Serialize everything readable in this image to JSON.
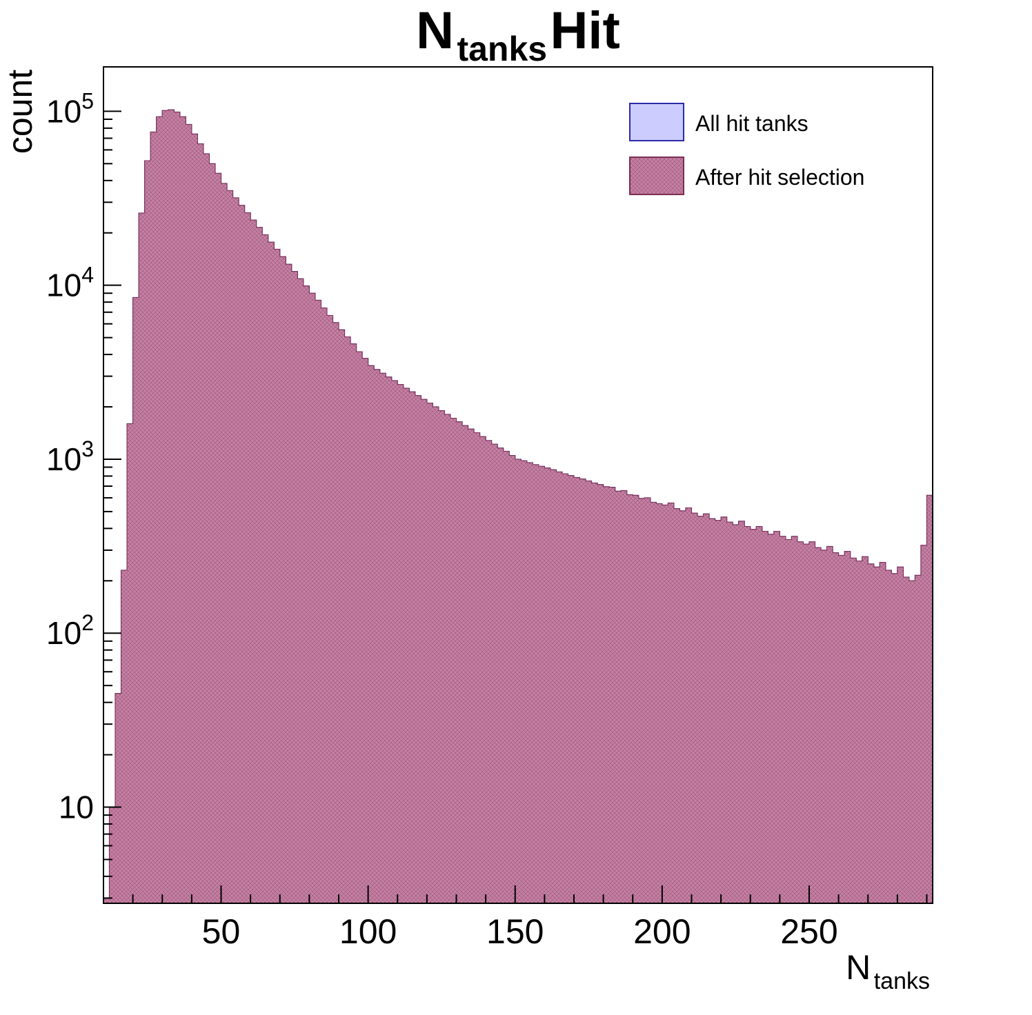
{
  "page": {
    "background": "#ffffff"
  },
  "title": {
    "prefix": "N",
    "subscript": "tanks",
    "suffix": " Hit"
  },
  "axes": {
    "y": {
      "label": "count",
      "scale": "log",
      "tick_exponents": [
        1,
        2,
        3,
        4,
        5
      ]
    },
    "x": {
      "label_prefix": "N",
      "label_subscript": "tanks",
      "major_ticks": [
        50,
        100,
        150,
        200,
        250
      ]
    }
  },
  "legend": {
    "items": [
      {
        "label": "All hit tanks",
        "fill": "#ccccff",
        "stroke": "#2a2aa8",
        "hatch": false
      },
      {
        "label": "After hit selection",
        "fill": "#c481a4",
        "stroke": "#7c2d52",
        "hatch": true
      }
    ]
  },
  "chart_data": {
    "type": "bar",
    "title": "N_tanks Hit",
    "xlabel": "N_tanks",
    "ylabel": "count",
    "yscale": "log",
    "grid": false,
    "legend_position": "top-right",
    "xlim": [
      10,
      292
    ],
    "ylim": [
      2.8,
      180000
    ],
    "bin_start": 10,
    "bin_width": 2,
    "series": [
      {
        "name": "All hit tanks",
        "values": [
          3,
          10,
          45,
          230,
          1600,
          8500,
          26000,
          52000,
          76000,
          93000,
          101000,
          102000,
          99000,
          93000,
          84000,
          74000,
          65000,
          57000,
          50000,
          44000,
          38500,
          35000,
          31800,
          28800,
          26100,
          23700,
          21500,
          19500,
          17700,
          16100,
          14600,
          13200,
          12000,
          10900,
          9900,
          9000,
          8200,
          7400,
          6700,
          6100,
          5550,
          5050,
          4600,
          4150,
          3800,
          3450,
          3280,
          3120,
          2970,
          2830,
          2690,
          2560,
          2440,
          2320,
          2210,
          2100,
          2000,
          1900,
          1810,
          1720,
          1640,
          1560,
          1490,
          1420,
          1350,
          1280,
          1220,
          1160,
          1110,
          1050,
          1000,
          980,
          955,
          930,
          910,
          890,
          870,
          845,
          825,
          805,
          785,
          770,
          750,
          730,
          715,
          695,
          690,
          655,
          660,
          625,
          620,
          595,
          600,
          565,
          555,
          545,
          560,
          520,
          505,
          525,
          490,
          470,
          485,
          455,
          445,
          465,
          435,
          420,
          440,
          410,
          395,
          410,
          385,
          370,
          385,
          360,
          345,
          360,
          335,
          325,
          335,
          310,
          300,
          315,
          290,
          280,
          295,
          270,
          260,
          275,
          250,
          240,
          255,
          230,
          220,
          240,
          210,
          200,
          215,
          320,
          620
        ]
      },
      {
        "name": "After hit selection",
        "values": [
          3,
          10,
          45,
          230,
          1600,
          8500,
          26000,
          52000,
          76000,
          93000,
          101000,
          102000,
          99000,
          93000,
          84000,
          74000,
          65000,
          57000,
          50000,
          44000,
          38500,
          35000,
          31800,
          28800,
          26100,
          23700,
          21500,
          19500,
          17700,
          16100,
          14600,
          13200,
          12000,
          10900,
          9900,
          9000,
          8200,
          7400,
          6700,
          6100,
          5550,
          5050,
          4600,
          4150,
          3800,
          3450,
          3280,
          3120,
          2970,
          2830,
          2690,
          2560,
          2440,
          2320,
          2210,
          2100,
          2000,
          1900,
          1810,
          1720,
          1640,
          1560,
          1490,
          1420,
          1350,
          1280,
          1220,
          1160,
          1110,
          1050,
          1000,
          980,
          955,
          930,
          910,
          890,
          870,
          845,
          825,
          805,
          785,
          770,
          750,
          730,
          715,
          695,
          690,
          655,
          660,
          625,
          620,
          595,
          600,
          565,
          555,
          545,
          560,
          520,
          505,
          525,
          490,
          470,
          485,
          455,
          445,
          465,
          435,
          420,
          440,
          410,
          395,
          410,
          385,
          370,
          385,
          360,
          345,
          360,
          335,
          325,
          335,
          310,
          300,
          315,
          290,
          280,
          295,
          270,
          260,
          275,
          250,
          240,
          255,
          230,
          220,
          240,
          210,
          200,
          215,
          320,
          620
        ]
      }
    ]
  }
}
